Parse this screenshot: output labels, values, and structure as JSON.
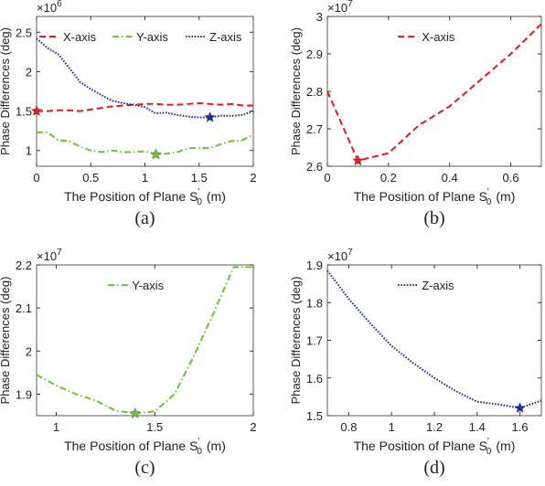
{
  "chart_data": [
    {
      "type": "line",
      "caption": "(a)",
      "ylabel": "Phase Differences (deg)",
      "xlabel": {
        "text": "The Position of Plane S",
        "prime": "'",
        "subscript": "0",
        "unit": "(m)"
      },
      "y_multiplier": {
        "base": "×10",
        "exponent": "6"
      },
      "xlim": [
        0,
        2
      ],
      "ylim": [
        0.8,
        2.7
      ],
      "xticks": [
        0,
        0.5,
        1,
        1.5,
        2
      ],
      "yticks": [
        1,
        1.5,
        2,
        2.5
      ],
      "legend": "north",
      "x": [
        0,
        0.1,
        0.2,
        0.3,
        0.4,
        0.5,
        0.6,
        0.7,
        0.8,
        0.9,
        1,
        1.1,
        1.2,
        1.3,
        1.4,
        1.5,
        1.6,
        1.7,
        1.8,
        1.9,
        2
      ],
      "series": [
        {
          "name": "X-axis",
          "color": "#e8191b",
          "line_style": "dashed",
          "values": [
            1.5,
            1.5,
            1.51,
            1.51,
            1.5,
            1.52,
            1.54,
            1.56,
            1.57,
            1.58,
            1.59,
            1.59,
            1.58,
            1.58,
            1.59,
            1.6,
            1.59,
            1.58,
            1.59,
            1.57,
            1.57
          ],
          "highlight": {
            "x": 0,
            "y": 1.5
          }
        },
        {
          "name": "Y-axis",
          "color": "#6ac33a",
          "line_style": "dashdot",
          "values": [
            1.23,
            1.23,
            1.13,
            1.12,
            1.05,
            1.0,
            0.98,
            1.0,
            0.98,
            0.98,
            0.99,
            0.95,
            0.96,
            0.98,
            1.03,
            1.03,
            1.03,
            1.08,
            1.12,
            1.13,
            1.2
          ],
          "highlight": {
            "x": 1.1,
            "y": 0.95
          }
        },
        {
          "name": "Z-axis",
          "color": "#1f2fa0",
          "line_style": "dotted",
          "values": [
            2.42,
            2.3,
            2.22,
            2.05,
            1.87,
            1.78,
            1.7,
            1.63,
            1.6,
            1.58,
            1.55,
            1.47,
            1.48,
            1.45,
            1.43,
            1.42,
            1.42,
            1.44,
            1.44,
            1.45,
            1.5
          ],
          "highlight": {
            "x": 1.6,
            "y": 1.42
          }
        }
      ]
    },
    {
      "type": "line",
      "caption": "(b)",
      "ylabel": "Phase Differences (deg)",
      "xlabel": {
        "text": "The Position of Plane S",
        "prime": "'",
        "subscript": "0",
        "unit": "(m)"
      },
      "y_multiplier": {
        "base": "×10",
        "exponent": "7"
      },
      "xlim": [
        0,
        0.7
      ],
      "ylim": [
        2.6,
        3
      ],
      "xticks": [
        0,
        0.2,
        0.4,
        0.6
      ],
      "yticks": [
        2.6,
        2.7,
        2.8,
        2.9,
        3
      ],
      "legend": "north",
      "x": [
        0,
        0.1,
        0.2,
        0.3,
        0.4,
        0.5,
        0.6,
        0.7
      ],
      "series": [
        {
          "name": "X-axis",
          "color": "#e8191b",
          "line_style": "dashed",
          "values": [
            2.8,
            2.615,
            2.635,
            2.71,
            2.76,
            2.83,
            2.9,
            2.98
          ],
          "highlight": {
            "x": 0.1,
            "y": 2.615
          }
        }
      ]
    },
    {
      "type": "line",
      "caption": "(c)",
      "ylabel": "Phase Differences (deg)",
      "xlabel": {
        "text": "The Position of Plane S",
        "prime": "'",
        "subscript": "0",
        "unit": "(m)"
      },
      "y_multiplier": {
        "base": "×10",
        "exponent": "7"
      },
      "xlim": [
        0.9,
        2
      ],
      "ylim": [
        1.85,
        2.2
      ],
      "xticks": [
        1,
        1.5,
        2
      ],
      "yticks": [
        1.9,
        2,
        2.1,
        2.2
      ],
      "legend": "north",
      "x": [
        0.9,
        1,
        1.1,
        1.2,
        1.3,
        1.4,
        1.5,
        1.6,
        1.7,
        1.8,
        1.9,
        2
      ],
      "series": [
        {
          "name": "Y-axis",
          "color": "#6ac33a",
          "line_style": "dashdot",
          "values": [
            1.945,
            1.92,
            1.9,
            1.885,
            1.862,
            1.855,
            1.86,
            1.9,
            1.99,
            2.09,
            2.195,
            2.195
          ],
          "highlight": {
            "x": 1.4,
            "y": 1.855
          }
        }
      ]
    },
    {
      "type": "line",
      "caption": "(d)",
      "ylabel": "Phase Differences (deg)",
      "xlabel": {
        "text": "The Position of Plane S",
        "prime": "'",
        "subscript": "0",
        "unit": "(m)"
      },
      "y_multiplier": {
        "base": "×10",
        "exponent": "7"
      },
      "xlim": [
        0.7,
        1.7
      ],
      "ylim": [
        1.5,
        1.9
      ],
      "xticks": [
        0.8,
        1,
        1.2,
        1.4,
        1.6
      ],
      "yticks": [
        1.5,
        1.6,
        1.7,
        1.8,
        1.9
      ],
      "legend": "north",
      "x": [
        0.7,
        0.8,
        0.9,
        1,
        1.1,
        1.2,
        1.3,
        1.4,
        1.5,
        1.6,
        1.7
      ],
      "series": [
        {
          "name": "Z-axis",
          "color": "#1f2fa0",
          "line_style": "dotted",
          "values": [
            1.885,
            1.81,
            1.745,
            1.685,
            1.64,
            1.6,
            1.565,
            1.537,
            1.53,
            1.52,
            1.54
          ],
          "highlight": {
            "x": 1.6,
            "y": 1.52
          }
        }
      ]
    }
  ]
}
